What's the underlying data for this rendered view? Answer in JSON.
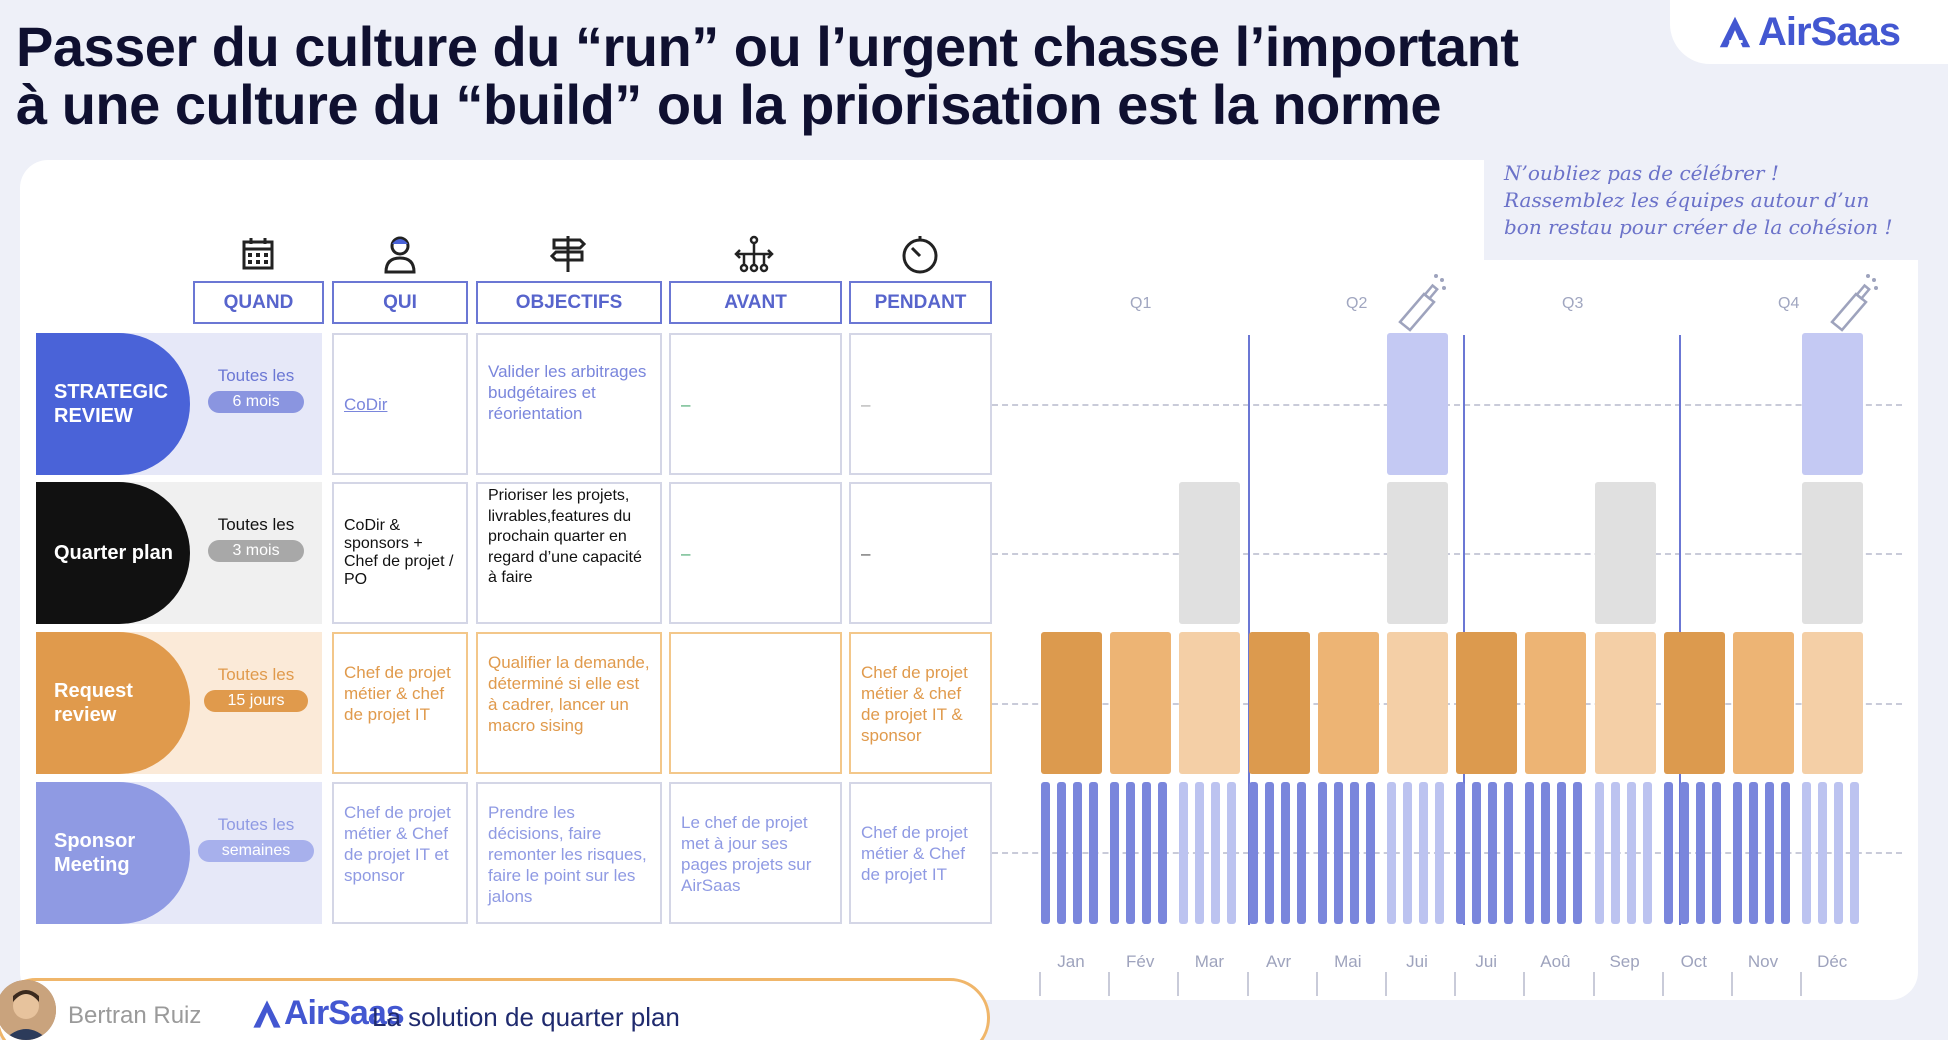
{
  "title": {
    "line1": "Passer du culture du “run” ou l’urgent chasse l’important",
    "line2": "à une culture du “build”  ou la priorisation est la norme"
  },
  "brand": {
    "name": "AirSaas"
  },
  "note": "N’oubliez pas de célébrer ! Rassemblez les équipes autour d’un bon restau pour créer de la cohésion !",
  "columns": [
    {
      "label": "QUAND",
      "icon": "calendar-icon"
    },
    {
      "label": "QUI",
      "icon": "person-icon"
    },
    {
      "label": "OBJECTIFS",
      "icon": "signpost-icon"
    },
    {
      "label": "AVANT",
      "icon": "network-icon"
    },
    {
      "label": "PENDANT",
      "icon": "timer-icon"
    }
  ],
  "rows": [
    {
      "name": "STRATEGIC REVIEW",
      "freq": "Toutes les",
      "period": "6 mois",
      "qui": "CoDir",
      "objectifs": "Valider les arbitrages budgétaires et réorientation",
      "avant": "–",
      "pendant": "–",
      "color": "#4a63d8"
    },
    {
      "name": "Quarter plan",
      "freq": "Toutes les",
      "period": "3 mois",
      "qui": "CoDir & sponsors  + Chef de projet / PO",
      "objectifs": "Prioriser les projets, livrables,features du prochain quarter en regard d’une capacité à faire",
      "avant": "–",
      "pendant": "–",
      "color": "#111111"
    },
    {
      "name": "Request review",
      "freq": "Toutes les",
      "period": "15 jours",
      "qui": "Chef de projet métier & chef de projet IT",
      "objectifs": "Qualifier la demande, déterminé si elle est à cadrer, lancer un macro sising",
      "avant": "",
      "pendant": "Chef de projet métier & chef de projet IT & sponsor",
      "color": "#e09a4c"
    },
    {
      "name": "Sponsor Meeting",
      "freq": "Toutes les",
      "period": "semaines",
      "qui": "Chef de projet métier & Chef de projet IT et sponsor",
      "objectifs": "Prendre les décisions, faire remonter les risques, faire le point sur les jalons",
      "avant": "Le chef de projet met à jour ses pages projets sur AirSaas",
      "pendant": "Chef de projet métier & Chef de projet IT",
      "color": "#8f9ae3"
    }
  ],
  "quarters": [
    "Q1",
    "Q2",
    "Q3",
    "Q4"
  ],
  "months": [
    "Jan",
    "Fév",
    "Mar",
    "Avr",
    "Mai",
    "Jui",
    "Jui",
    "Aoû",
    "Sep",
    "Oct",
    "Nov",
    "Déc"
  ],
  "footer": {
    "presenter": "Bertran Ruiz",
    "brand": "AirSaas",
    "tagline": "La solution de quarter plan"
  },
  "colors": {
    "accent": "#4357d1",
    "strategic": "#c4c9f3",
    "quarter": "#e0e0e0",
    "request_dark": "#dc9a4e",
    "request_mid": "#edb474",
    "request_light": "#f4cfa6",
    "sponsor_dark": "#7a86dc",
    "sponsor_light": "#bcc3f0"
  }
}
